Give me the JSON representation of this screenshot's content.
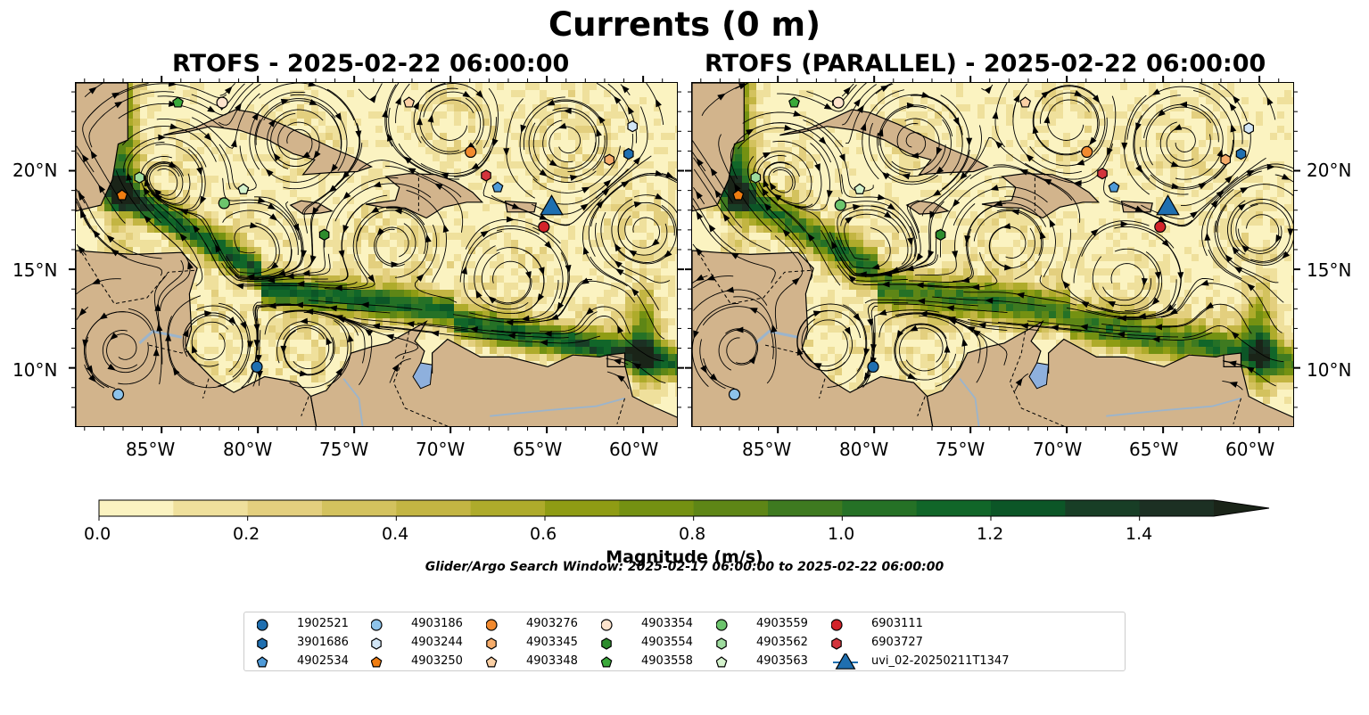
{
  "figure": {
    "title": "Currents (0 m)",
    "search_window": "Glider/Argo Search Window: 2025-02-17 06:00:00 to 2025-02-22 06:00:00"
  },
  "chart_data": [
    {
      "type": "heatmap",
      "title": "RTOFS - 2025-02-22 06:00:00",
      "lon_range": [
        -89.5,
        -58.2
      ],
      "lat_range": [
        7,
        24.5
      ],
      "x_ticks": [
        "85°W",
        "80°W",
        "75°W",
        "70°W",
        "65°W",
        "60°W"
      ],
      "y_ticks": [
        "10°N",
        "15°N",
        "20°N"
      ],
      "y_tick_side": "left",
      "colorbar_ref": "colorbar"
    },
    {
      "type": "heatmap",
      "title": "RTOFS (PARALLEL) - 2025-02-22 06:00:00",
      "lon_range": [
        -89.5,
        -58.2
      ],
      "lat_range": [
        7,
        24.5
      ],
      "x_ticks": [
        "85°W",
        "80°W",
        "75°W",
        "70°W",
        "65°W",
        "60°W"
      ],
      "y_ticks": [
        "10°N",
        "15°N",
        "20°N"
      ],
      "y_tick_side": "right",
      "colorbar_ref": "colorbar"
    }
  ],
  "colorbar": {
    "label": "Magnitude (m/s)",
    "min": 0.0,
    "max": 1.5,
    "extend": "max",
    "ticks": [
      "0.0",
      "0.2",
      "0.4",
      "0.6",
      "0.8",
      "1.0",
      "1.2",
      "1.4"
    ],
    "colors": [
      "#fbf3c1",
      "#efe09c",
      "#e3cf7e",
      "#d3c25e",
      "#c3b543",
      "#aeab2b",
      "#8f9c14",
      "#749112",
      "#5e8616",
      "#3e7a20",
      "#257126",
      "#116629",
      "#0c5627",
      "#183e26",
      "#1c3023",
      "#1a2418"
    ]
  },
  "colors": {
    "land": "#d2b48c",
    "lake": "#8eb0dd",
    "streamline": "#000000"
  },
  "legend": {
    "placement": "bottom-center",
    "columns": 7,
    "items": [
      {
        "label": "1902521",
        "marker": "circle",
        "color": "#1f6fb0"
      },
      {
        "label": "3901686",
        "marker": "hexagon",
        "color": "#1f6fb0"
      },
      {
        "label": "4902534",
        "marker": "pentagon",
        "color": "#4f9bd9"
      },
      {
        "label": "4903186",
        "marker": "circle",
        "color": "#8dc3ea"
      },
      {
        "label": "4903244",
        "marker": "hexagon",
        "color": "#d2e6f6"
      },
      {
        "label": "4903250",
        "marker": "pentagon",
        "color": "#f07d11"
      },
      {
        "label": "4903276",
        "marker": "circle",
        "color": "#f28a2f"
      },
      {
        "label": "4903345",
        "marker": "hexagon",
        "color": "#f6ac6a"
      },
      {
        "label": "4903348",
        "marker": "pentagon",
        "color": "#fbd0a5"
      },
      {
        "label": "4903354",
        "marker": "circle",
        "color": "#fde3cc"
      },
      {
        "label": "4903554",
        "marker": "hexagon",
        "color": "#2d8c2d"
      },
      {
        "label": "4903558",
        "marker": "pentagon",
        "color": "#3aa93a"
      },
      {
        "label": "4903559",
        "marker": "circle",
        "color": "#6cc46c"
      },
      {
        "label": "4903562",
        "marker": "hexagon",
        "color": "#9edc9e"
      },
      {
        "label": "4903563",
        "marker": "pentagon",
        "color": "#d5f3cd"
      },
      {
        "label": "6903111",
        "marker": "circle",
        "color": "#d3232a"
      },
      {
        "label": "6903727",
        "marker": "hexagon",
        "color": "#d3343c"
      },
      {
        "label": "uvi_02-20250211T1347",
        "marker": "triangle",
        "color": "#1f6fb0"
      }
    ]
  },
  "platforms_panel1": [
    {
      "id": "1902521",
      "lon": -80.1,
      "lat": 10.1
    },
    {
      "id": "3901686",
      "lon": -60.8,
      "lat": 20.9
    },
    {
      "id": "4902534",
      "lon": -67.6,
      "lat": 19.2
    },
    {
      "id": "4903186",
      "lon": -87.3,
      "lat": 8.7
    },
    {
      "id": "4903244",
      "lon": -60.6,
      "lat": 22.3
    },
    {
      "id": "4903250",
      "lon": -87.1,
      "lat": 18.8
    },
    {
      "id": "4903276",
      "lon": -69.0,
      "lat": 21.0
    },
    {
      "id": "4903345",
      "lon": -61.8,
      "lat": 20.6
    },
    {
      "id": "4903348",
      "lon": -72.2,
      "lat": 23.5
    },
    {
      "id": "4903354",
      "lon": -81.9,
      "lat": 23.5
    },
    {
      "id": "4903554",
      "lon": -76.6,
      "lat": 16.8
    },
    {
      "id": "4903558",
      "lon": -84.2,
      "lat": 23.5
    },
    {
      "id": "4903559",
      "lon": -81.8,
      "lat": 18.4
    },
    {
      "id": "4903562",
      "lon": -86.2,
      "lat": 19.7
    },
    {
      "id": "4903563",
      "lon": -80.8,
      "lat": 19.1
    },
    {
      "id": "6903111",
      "lon": -65.2,
      "lat": 17.2
    },
    {
      "id": "6903727",
      "lon": -68.2,
      "lat": 19.8
    },
    {
      "id": "uvi_02-20250211T1347",
      "lon": -64.8,
      "lat": 18.2
    }
  ],
  "platforms_panel2": [
    {
      "id": "1902521",
      "lon": -80.1,
      "lat": 10.1
    },
    {
      "id": "3901686",
      "lon": -61.0,
      "lat": 20.9
    },
    {
      "id": "4902534",
      "lon": -67.6,
      "lat": 19.2
    },
    {
      "id": "4903186",
      "lon": -87.3,
      "lat": 8.7
    },
    {
      "id": "4903244",
      "lon": -60.6,
      "lat": 22.2
    },
    {
      "id": "4903250",
      "lon": -87.1,
      "lat": 18.8
    },
    {
      "id": "4903276",
      "lon": -69.0,
      "lat": 21.0
    },
    {
      "id": "4903345",
      "lon": -61.8,
      "lat": 20.6
    },
    {
      "id": "4903348",
      "lon": -72.2,
      "lat": 23.5
    },
    {
      "id": "4903354",
      "lon": -81.9,
      "lat": 23.5
    },
    {
      "id": "4903554",
      "lon": -76.6,
      "lat": 16.8
    },
    {
      "id": "4903558",
      "lon": -84.2,
      "lat": 23.5
    },
    {
      "id": "4903559",
      "lon": -81.8,
      "lat": 18.3
    },
    {
      "id": "4903562",
      "lon": -86.2,
      "lat": 19.7
    },
    {
      "id": "4903563",
      "lon": -80.8,
      "lat": 19.1
    },
    {
      "id": "6903111",
      "lon": -65.2,
      "lat": 17.2
    },
    {
      "id": "6903727",
      "lon": -68.2,
      "lat": 19.9
    },
    {
      "id": "uvi_02-20250211T1347",
      "lon": -64.8,
      "lat": 18.2
    }
  ]
}
